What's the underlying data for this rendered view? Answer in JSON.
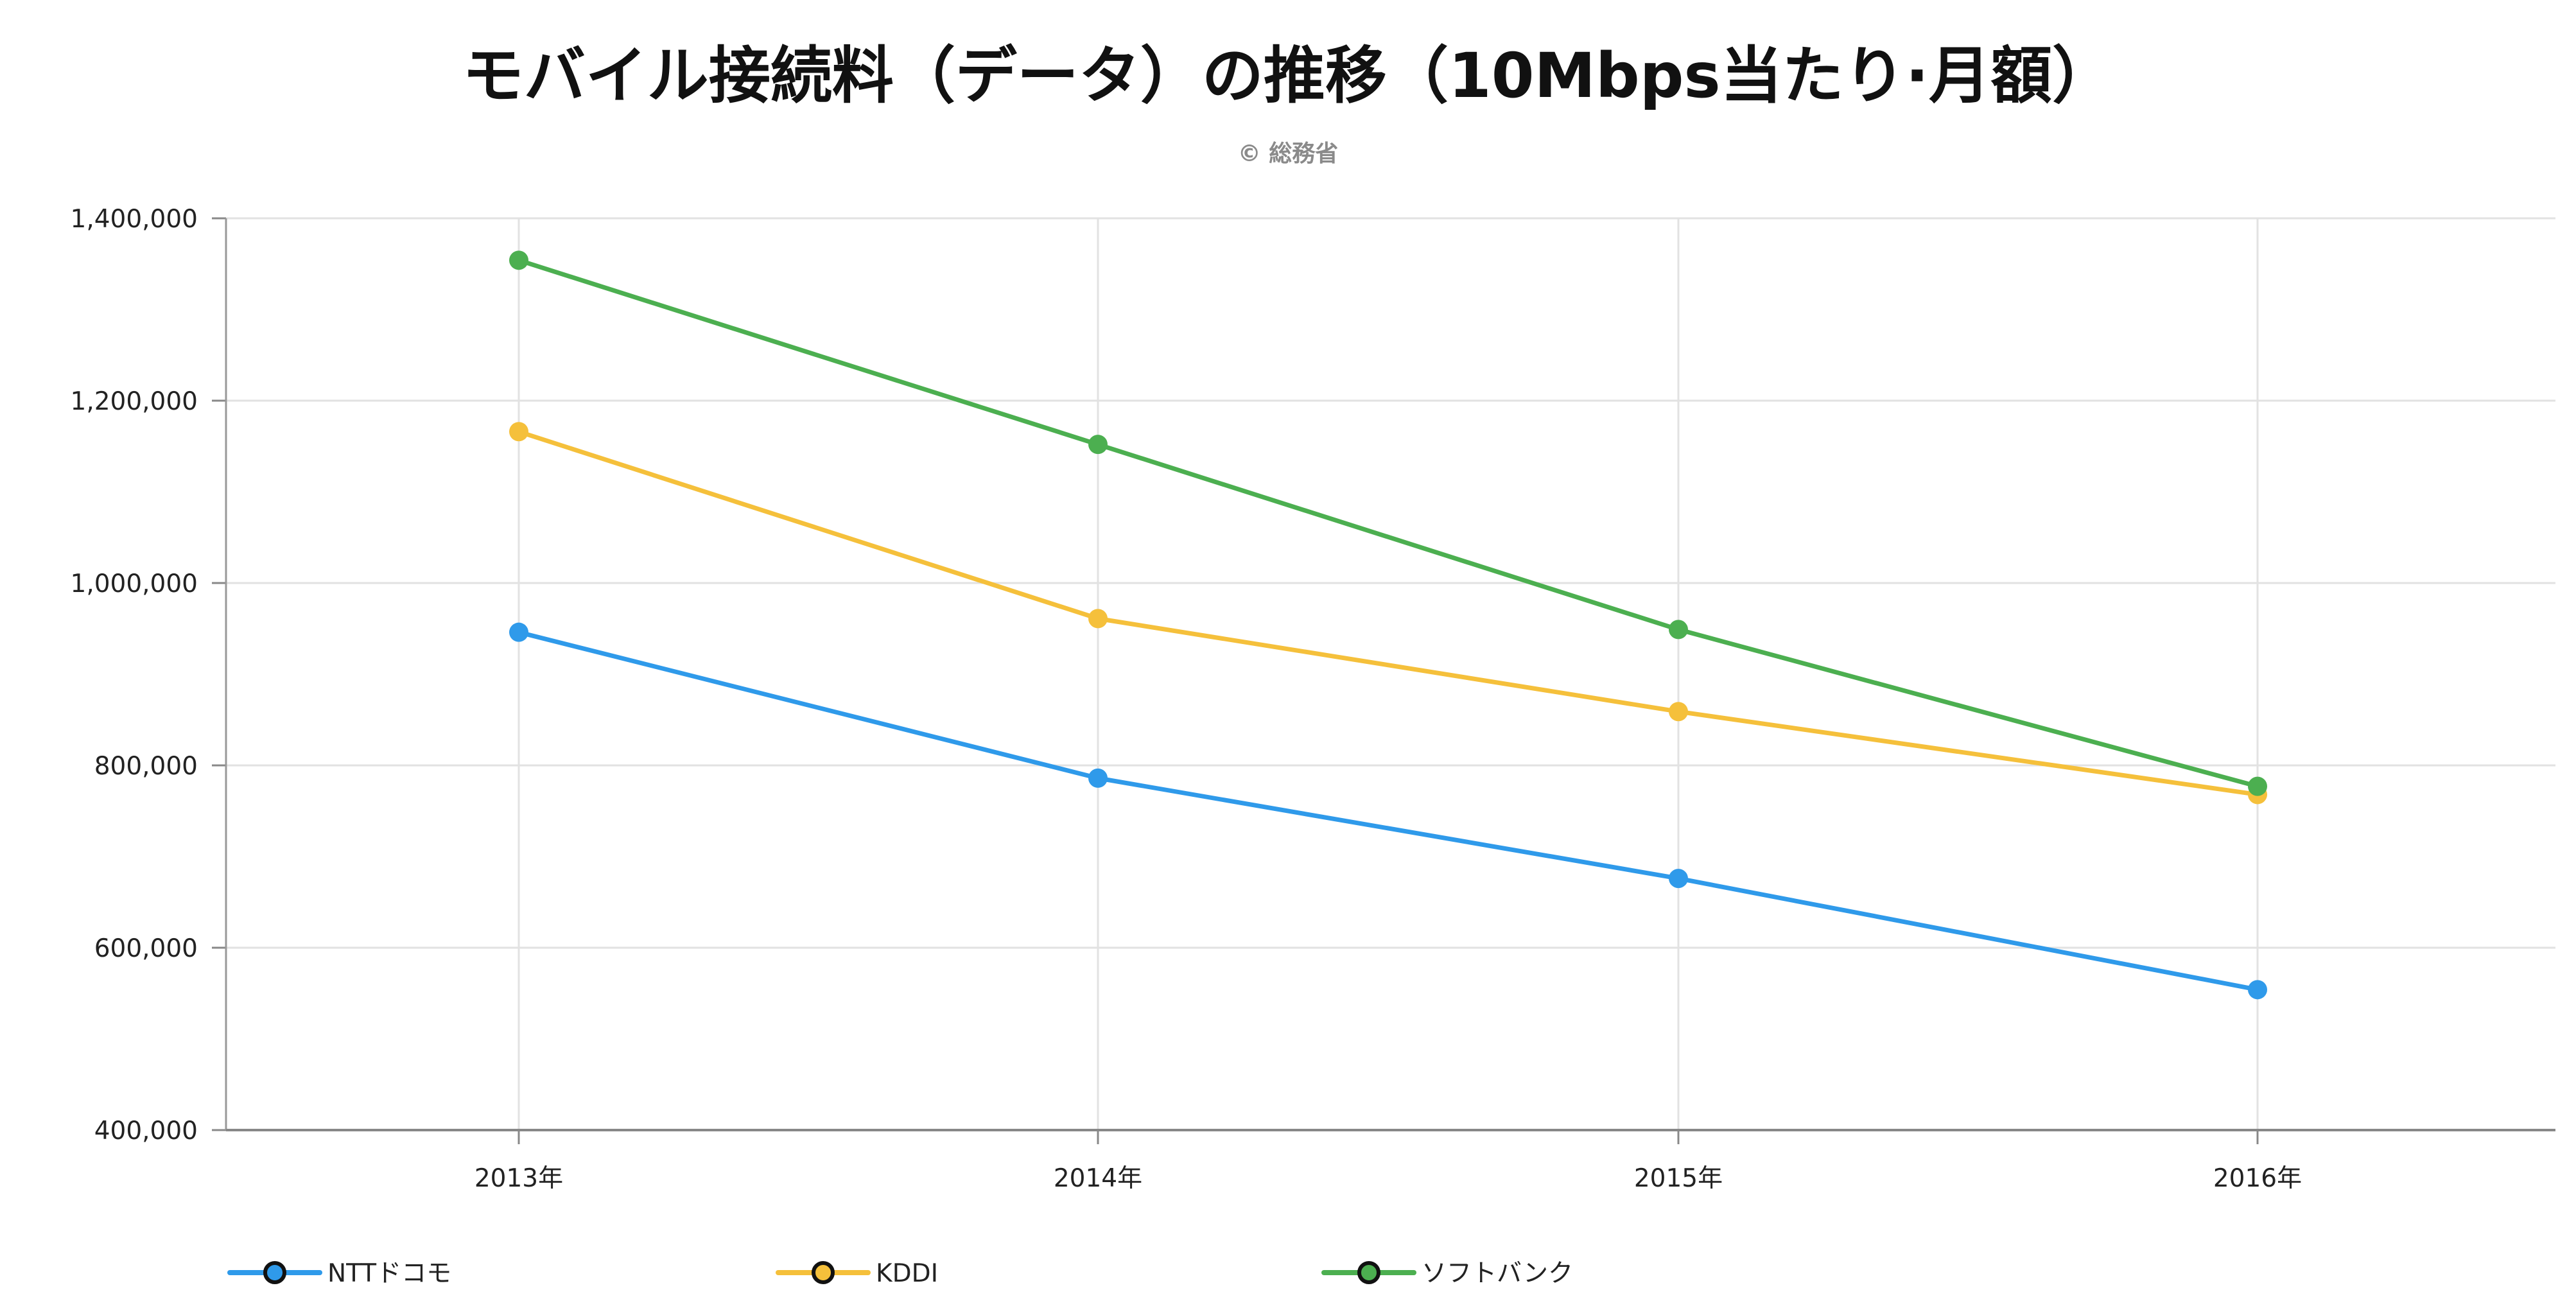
{
  "chart_data": {
    "type": "line",
    "title": "モバイル接続料（データ）の推移（10Mbps当たり·月額）",
    "credit": "© 総務省",
    "categories": [
      "2013年",
      "2014年",
      "2015年",
      "2016年"
    ],
    "ylim": [
      400000,
      1400000
    ],
    "yticks": [
      {
        "value": 400000,
        "label": "400,000"
      },
      {
        "value": 600000,
        "label": "600,000"
      },
      {
        "value": 800000,
        "label": "800,000"
      },
      {
        "value": 1000000,
        "label": "1,000,000"
      },
      {
        "value": 1200000,
        "label": "1,200,000"
      },
      {
        "value": 1400000,
        "label": "1,400,000"
      }
    ],
    "grid": true,
    "legend_position": "bottom-left",
    "series": [
      {
        "name": "NTTドコモ",
        "color": "#2f9aea",
        "values": [
          946000,
          786000,
          676000,
          554000
        ]
      },
      {
        "name": "KDDI",
        "color": "#f5c03b",
        "values": [
          1166000,
          961000,
          859000,
          768000
        ]
      },
      {
        "name": "ソフトバンク",
        "color": "#4caf50",
        "values": [
          1354000,
          1152000,
          949000,
          777000
        ]
      }
    ]
  }
}
